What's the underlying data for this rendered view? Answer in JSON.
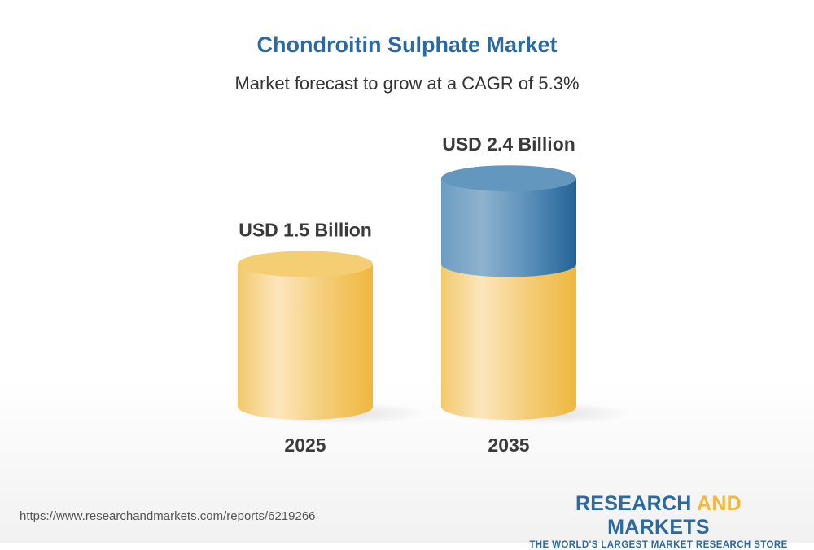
{
  "chart_data": {
    "type": "bar",
    "style": "3d-cylinder",
    "title": "Chondroitin Sulphate Market",
    "subtitle": "Market forecast to grow at a CAGR of 5.3%",
    "categories": [
      "2025",
      "2035"
    ],
    "values": [
      1.5,
      2.4
    ],
    "unit": "USD Billion",
    "data_labels": [
      "USD 1.5 Billion",
      "USD 2.4 Billion"
    ],
    "colors": {
      "base": "#f2c45c",
      "growth": "#3f7bab",
      "title": "#2b6aa0"
    }
  },
  "footer": {
    "url": "https://www.researchandmarkets.com/reports/6219266",
    "logo_part1": "RESEARCH ",
    "logo_part2": "AND",
    "logo_part3": " MARKETS",
    "tagline": "THE WORLD'S LARGEST MARKET RESEARCH STORE"
  }
}
